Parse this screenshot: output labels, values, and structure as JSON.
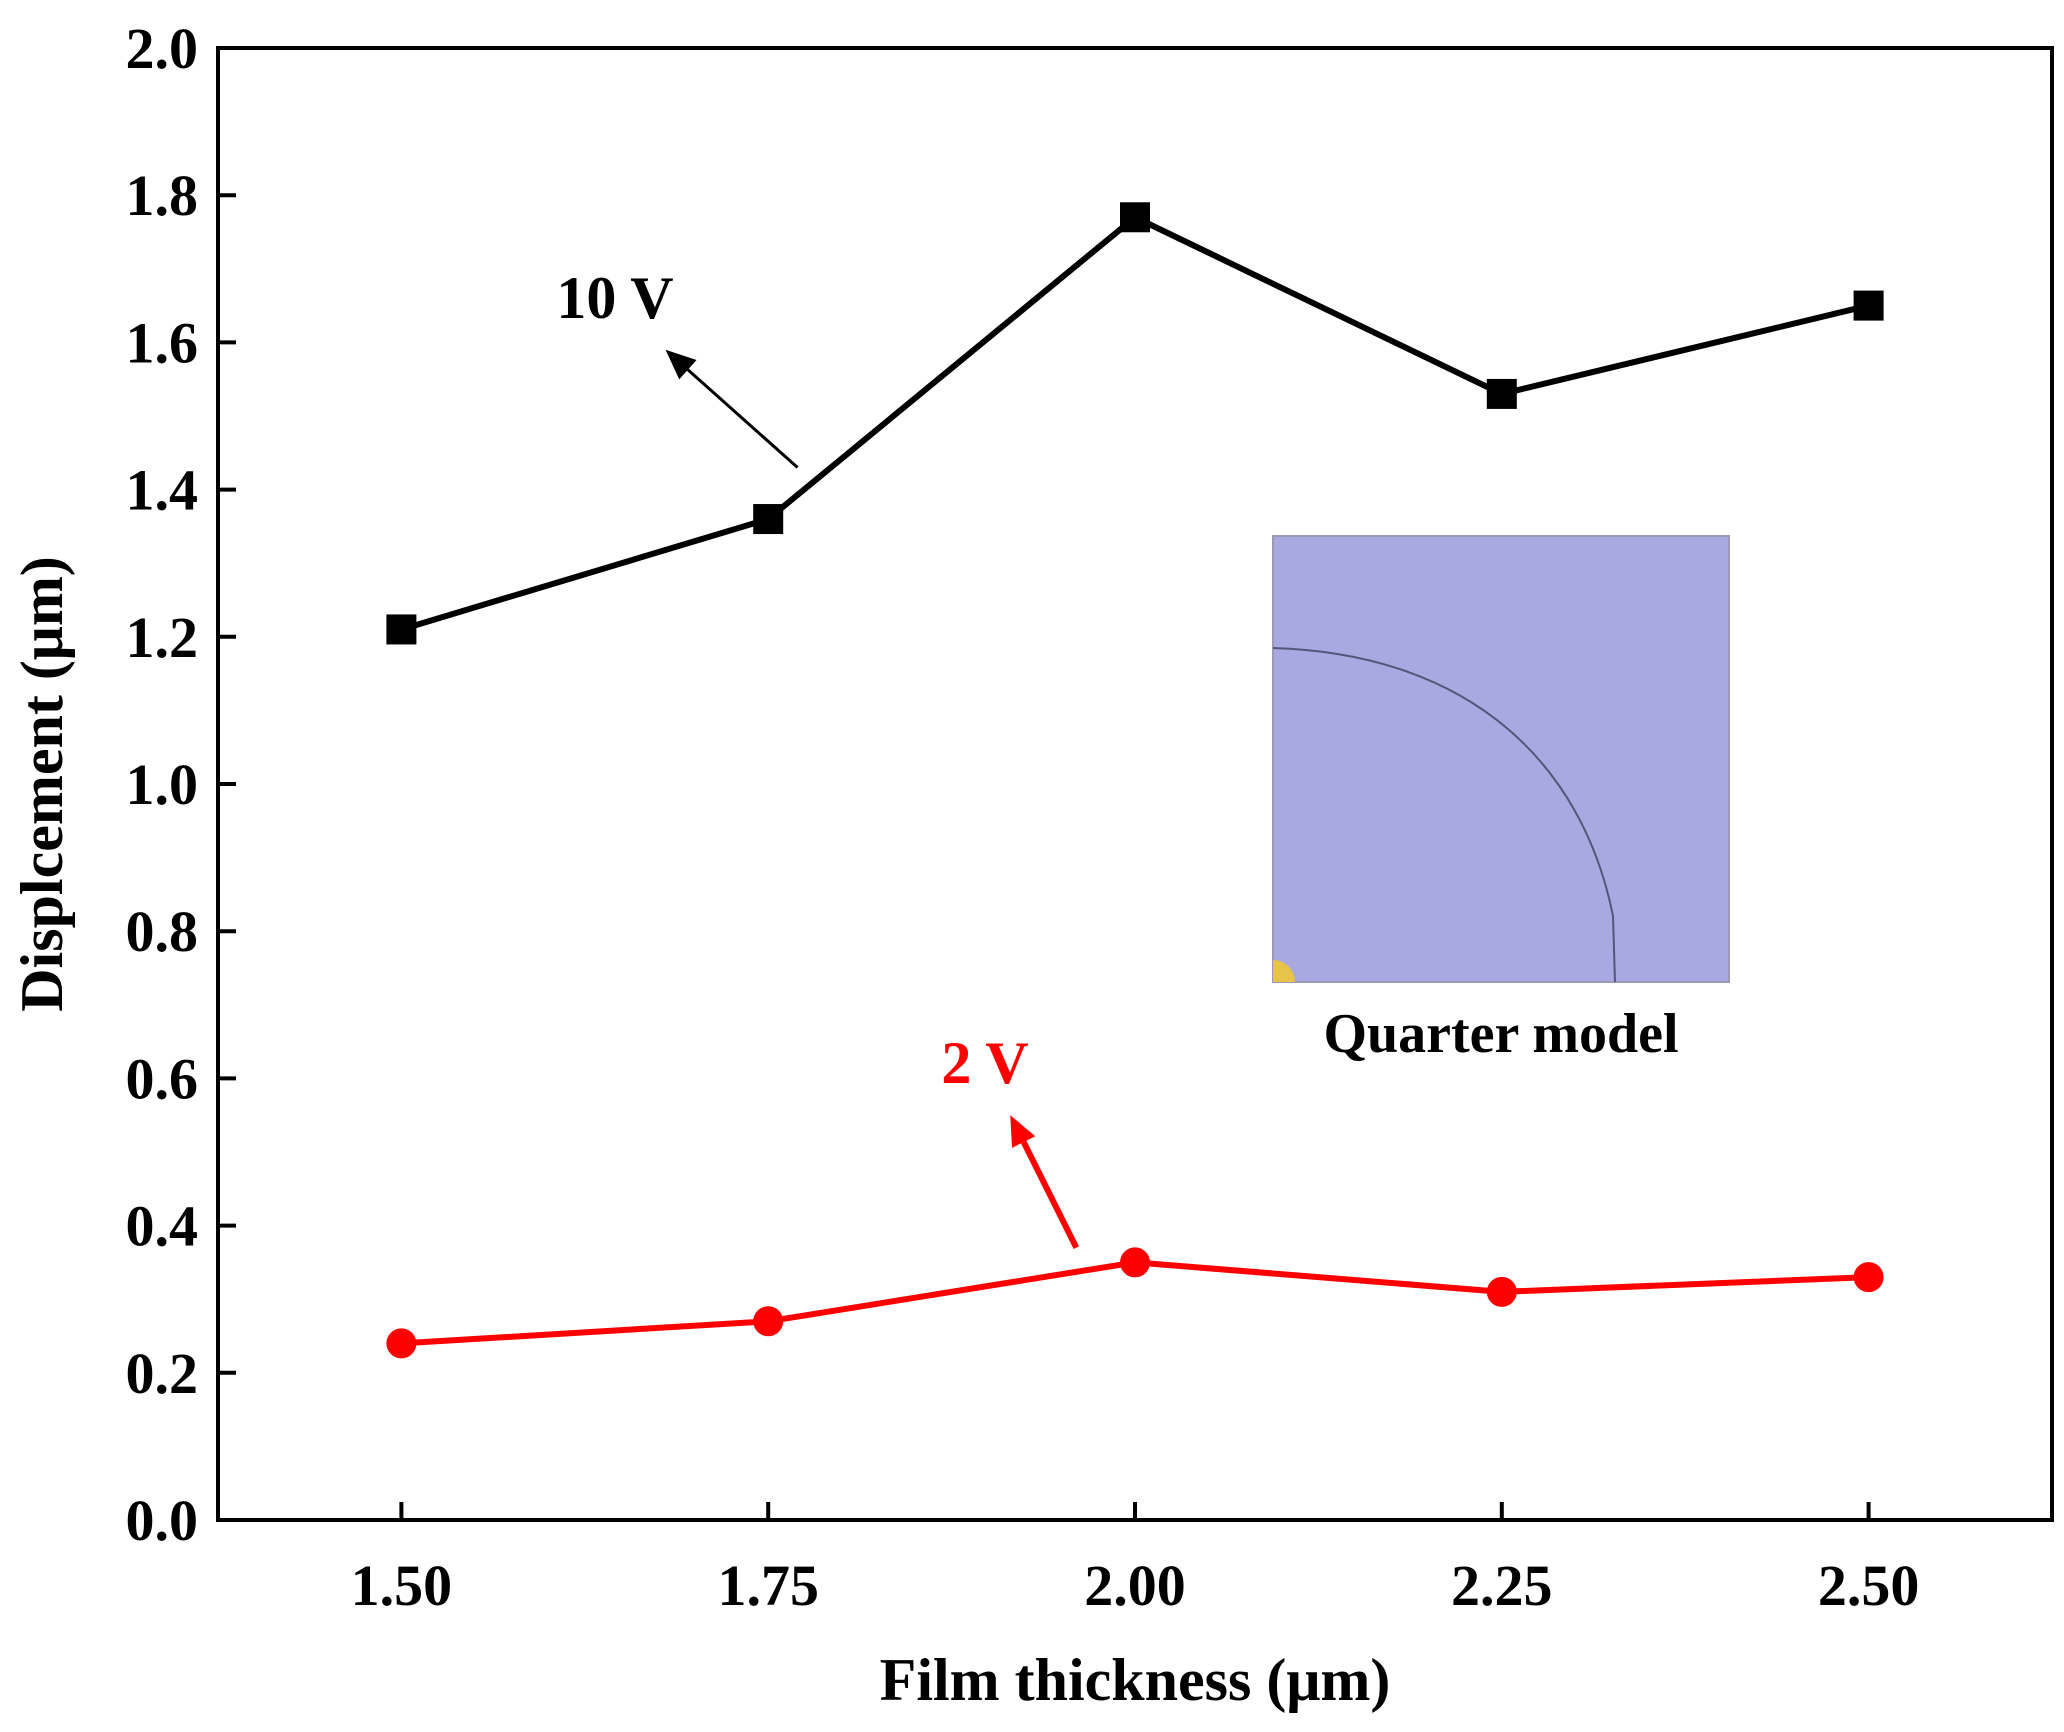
{
  "chart_data": {
    "type": "line",
    "xlabel": "Film thickness (μm)",
    "ylabel": "Displcement (μm)",
    "xlim": [
      1.375,
      2.625
    ],
    "ylim": [
      0.0,
      2.0
    ],
    "x_ticks": [
      1.5,
      1.75,
      2.0,
      2.25,
      2.5
    ],
    "x_tick_labels": [
      "1.50",
      "1.75",
      "2.00",
      "2.25",
      "2.50"
    ],
    "y_ticks": [
      0.0,
      0.2,
      0.4,
      0.6,
      0.8,
      1.0,
      1.2,
      1.4,
      1.6,
      1.8,
      2.0
    ],
    "y_tick_labels": [
      "0.0",
      "0.2",
      "0.4",
      "0.6",
      "0.8",
      "1.0",
      "1.2",
      "1.4",
      "1.6",
      "1.8",
      "2.0"
    ],
    "grid": false,
    "series": [
      {
        "name": "10 V",
        "color": "#000000",
        "marker": "square",
        "x": [
          1.5,
          1.75,
          2.0,
          2.25,
          2.5
        ],
        "y": [
          1.21,
          1.36,
          1.77,
          1.53,
          1.65
        ]
      },
      {
        "name": "2 V",
        "color": "#ff0000",
        "marker": "circle",
        "x": [
          1.5,
          1.75,
          2.0,
          2.25,
          2.5
        ],
        "y": [
          0.24,
          0.27,
          0.35,
          0.31,
          0.33
        ]
      }
    ],
    "annotations": [
      {
        "text": "10 V",
        "color": "#000000",
        "arrow_from": [
          1.77,
          1.43
        ],
        "arrow_to": [
          1.68,
          1.59
        ]
      },
      {
        "text": "2 V",
        "color": "#ff0000",
        "arrow_from": [
          1.96,
          0.37
        ],
        "arrow_to": [
          1.915,
          0.55
        ]
      }
    ],
    "inset": {
      "caption": "Quarter model",
      "fill_color": "#a9a9e2",
      "curve_color": "#555577",
      "dot_color": "#e8c34a"
    }
  }
}
